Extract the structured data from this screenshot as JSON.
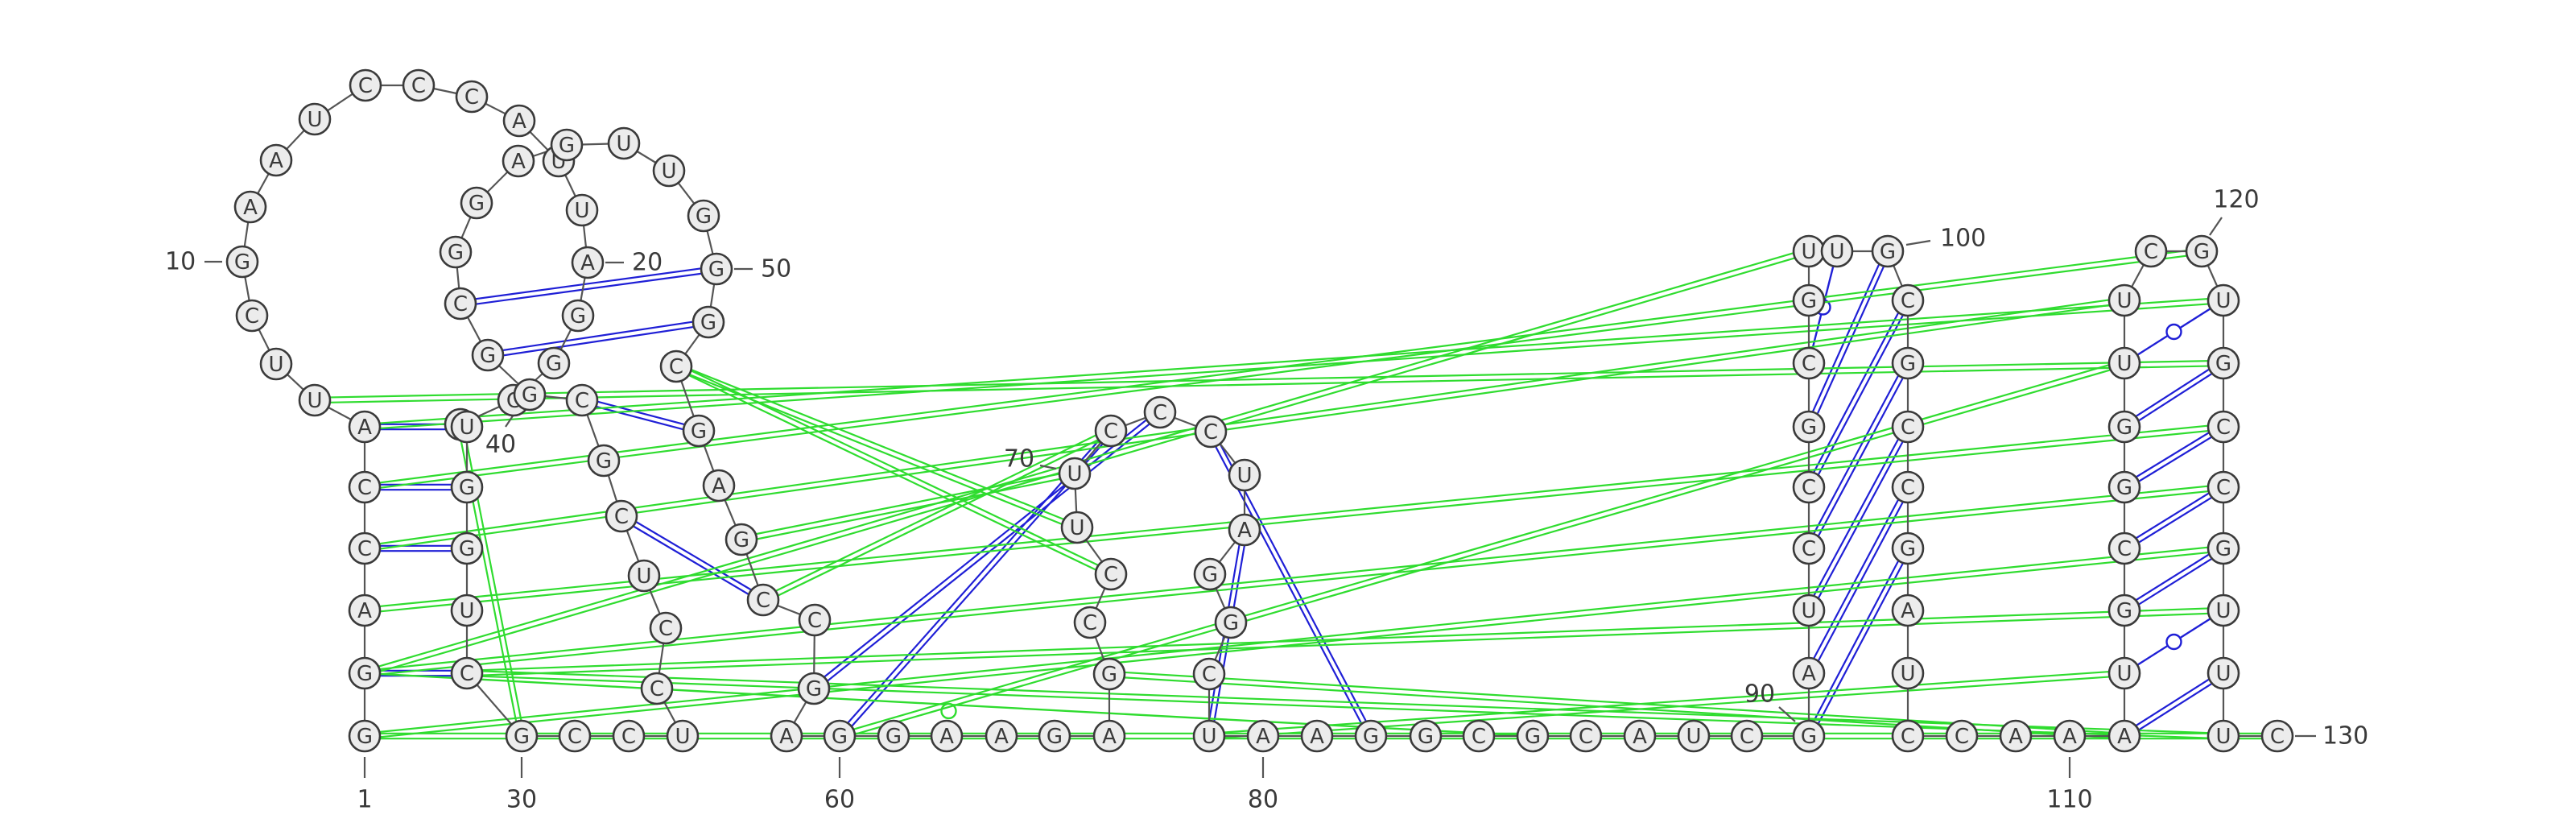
{
  "diagram": {
    "type": "rna-secondary-structure",
    "colors": {
      "background": "#ffffff",
      "backbone": "#555555",
      "nucleotide_fill": "#ececec",
      "nucleotide_stroke": "#3a3a3a",
      "canonical_pair": "#1f1fd6",
      "noncanonical_pair": "#2fdc2f"
    },
    "nucleotides": [
      {
        "n": 1,
        "b": "G"
      },
      {
        "n": 2,
        "b": "G"
      },
      {
        "n": 3,
        "b": "A"
      },
      {
        "n": 4,
        "b": "C"
      },
      {
        "n": 5,
        "b": "C"
      },
      {
        "n": 6,
        "b": "A"
      },
      {
        "n": 7,
        "b": "U"
      },
      {
        "n": 8,
        "b": "U"
      },
      {
        "n": 9,
        "b": "C"
      },
      {
        "n": 10,
        "b": "G"
      },
      {
        "n": 11,
        "b": "A"
      },
      {
        "n": 12,
        "b": "A"
      },
      {
        "n": 13,
        "b": "U"
      },
      {
        "n": 14,
        "b": "C"
      },
      {
        "n": 15,
        "b": "C"
      },
      {
        "n": 16,
        "b": "C"
      },
      {
        "n": 17,
        "b": "A"
      },
      {
        "n": 18,
        "b": "U"
      },
      {
        "n": 19,
        "b": "U"
      },
      {
        "n": 20,
        "b": "A"
      },
      {
        "n": 21,
        "b": "G"
      },
      {
        "n": 22,
        "b": "G"
      },
      {
        "n": 23,
        "b": "C"
      },
      {
        "n": 24,
        "b": "G"
      },
      {
        "n": 25,
        "b": "U"
      },
      {
        "n": 26,
        "b": "G"
      },
      {
        "n": 27,
        "b": "G"
      },
      {
        "n": 28,
        "b": "U"
      },
      {
        "n": 29,
        "b": "C"
      },
      {
        "n": 30,
        "b": "G"
      },
      {
        "n": 31,
        "b": "C"
      },
      {
        "n": 32,
        "b": "C"
      },
      {
        "n": 33,
        "b": "U"
      },
      {
        "n": 34,
        "b": "C"
      },
      {
        "n": 35,
        "b": "C"
      },
      {
        "n": 36,
        "b": "U"
      },
      {
        "n": 37,
        "b": "C"
      },
      {
        "n": 38,
        "b": "G"
      },
      {
        "n": 39,
        "b": "C"
      },
      {
        "n": 40,
        "b": "G"
      },
      {
        "n": 41,
        "b": "G"
      },
      {
        "n": 42,
        "b": "C"
      },
      {
        "n": 43,
        "b": "G"
      },
      {
        "n": 44,
        "b": "G"
      },
      {
        "n": 45,
        "b": "A"
      },
      {
        "n": 46,
        "b": "G"
      },
      {
        "n": 47,
        "b": "U"
      },
      {
        "n": 48,
        "b": "U"
      },
      {
        "n": 49,
        "b": "G"
      },
      {
        "n": 50,
        "b": "G"
      },
      {
        "n": 51,
        "b": "G"
      },
      {
        "n": 52,
        "b": "C"
      },
      {
        "n": 53,
        "b": "G"
      },
      {
        "n": 54,
        "b": "A"
      },
      {
        "n": 55,
        "b": "G"
      },
      {
        "n": 56,
        "b": "C"
      },
      {
        "n": 57,
        "b": "C"
      },
      {
        "n": 58,
        "b": "G"
      },
      {
        "n": 59,
        "b": "A"
      },
      {
        "n": 60,
        "b": "G"
      },
      {
        "n": 61,
        "b": "G"
      },
      {
        "n": 62,
        "b": "A"
      },
      {
        "n": 63,
        "b": "A"
      },
      {
        "n": 64,
        "b": "G"
      },
      {
        "n": 65,
        "b": "A"
      },
      {
        "n": 66,
        "b": "G"
      },
      {
        "n": 67,
        "b": "C"
      },
      {
        "n": 68,
        "b": "C"
      },
      {
        "n": 69,
        "b": "U"
      },
      {
        "n": 70,
        "b": "U"
      },
      {
        "n": 71,
        "b": "C"
      },
      {
        "n": 72,
        "b": "C"
      },
      {
        "n": 73,
        "b": "C"
      },
      {
        "n": 74,
        "b": "U"
      },
      {
        "n": 75,
        "b": "A"
      },
      {
        "n": 76,
        "b": "G"
      },
      {
        "n": 77,
        "b": "G"
      },
      {
        "n": 78,
        "b": "C"
      },
      {
        "n": 79,
        "b": "U"
      },
      {
        "n": 80,
        "b": "A"
      },
      {
        "n": 81,
        "b": "A"
      },
      {
        "n": 82,
        "b": "G"
      },
      {
        "n": 83,
        "b": "G"
      },
      {
        "n": 84,
        "b": "C"
      },
      {
        "n": 85,
        "b": "G"
      },
      {
        "n": 86,
        "b": "C"
      },
      {
        "n": 87,
        "b": "A"
      },
      {
        "n": 88,
        "b": "U"
      },
      {
        "n": 89,
        "b": "C"
      },
      {
        "n": 90,
        "b": "G"
      },
      {
        "n": 91,
        "b": "A"
      },
      {
        "n": 92,
        "b": "U"
      },
      {
        "n": 93,
        "b": "C"
      },
      {
        "n": 94,
        "b": "C"
      },
      {
        "n": 95,
        "b": "G"
      },
      {
        "n": 96,
        "b": "C"
      },
      {
        "n": 97,
        "b": "G"
      },
      {
        "n": 98,
        "b": "U"
      },
      {
        "n": 99,
        "b": "U"
      },
      {
        "n": 100,
        "b": "G"
      },
      {
        "n": 101,
        "b": "C"
      },
      {
        "n": 102,
        "b": "G"
      },
      {
        "n": 103,
        "b": "C"
      },
      {
        "n": 104,
        "b": "C"
      },
      {
        "n": 105,
        "b": "G"
      },
      {
        "n": 106,
        "b": "A"
      },
      {
        "n": 107,
        "b": "U"
      },
      {
        "n": 108,
        "b": "C"
      },
      {
        "n": 109,
        "b": "C"
      },
      {
        "n": 110,
        "b": "A"
      },
      {
        "n": 111,
        "b": "A"
      },
      {
        "n": 112,
        "b": "A"
      },
      {
        "n": 113,
        "b": "U"
      },
      {
        "n": 114,
        "b": "G"
      },
      {
        "n": 115,
        "b": "C"
      },
      {
        "n": 116,
        "b": "G"
      },
      {
        "n": 117,
        "b": "G"
      },
      {
        "n": 118,
        "b": "U"
      },
      {
        "n": 119,
        "b": "U"
      },
      {
        "n": 120,
        "b": "C"
      },
      {
        "n": 121,
        "b": "G"
      },
      {
        "n": 122,
        "b": "U"
      },
      {
        "n": 123,
        "b": "G"
      },
      {
        "n": 124,
        "b": "C"
      },
      {
        "n": 125,
        "b": "C"
      },
      {
        "n": 126,
        "b": "G"
      },
      {
        "n": 127,
        "b": "U"
      },
      {
        "n": 128,
        "b": "U"
      },
      {
        "n": 129,
        "b": "U"
      },
      {
        "n": 130,
        "b": "C"
      }
    ],
    "number_labels": [
      "1",
      "10",
      "20",
      "30",
      "40",
      "50",
      "60",
      "70",
      "80",
      "90",
      "100",
      "110",
      "120",
      "130"
    ],
    "pairs": [
      {
        "i": 2,
        "j": 29,
        "type": "canonical"
      },
      {
        "i": 4,
        "j": 27,
        "type": "canonical"
      },
      {
        "i": 5,
        "j": 26,
        "type": "canonical"
      },
      {
        "i": 6,
        "j": 25,
        "type": "canonical"
      },
      {
        "i": 37,
        "j": 56,
        "type": "canonical"
      },
      {
        "i": 39,
        "j": 53,
        "type": "canonical"
      },
      {
        "i": 41,
        "j": 51,
        "type": "canonical"
      },
      {
        "i": 42,
        "j": 50,
        "type": "canonical"
      },
      {
        "i": 60,
        "j": 71,
        "type": "canonical"
      },
      {
        "i": 58,
        "j": 72,
        "type": "canonical"
      },
      {
        "i": 75,
        "j": 79,
        "type": "canonical"
      },
      {
        "i": 73,
        "j": 82,
        "type": "canonical"
      },
      {
        "i": 90,
        "j": 105,
        "type": "canonical"
      },
      {
        "i": 91,
        "j": 104,
        "type": "canonical"
      },
      {
        "i": 92,
        "j": 103,
        "type": "canonical"
      },
      {
        "i": 93,
        "j": 102,
        "type": "canonical"
      },
      {
        "i": 94,
        "j": 101,
        "type": "canonical"
      },
      {
        "i": 95,
        "j": 100,
        "type": "canonical"
      },
      {
        "i": 96,
        "j": 99,
        "type": "wobble"
      },
      {
        "i": 112,
        "j": 128,
        "type": "canonical"
      },
      {
        "i": 113,
        "j": 127,
        "type": "wobble"
      },
      {
        "i": 114,
        "j": 126,
        "type": "canonical"
      },
      {
        "i": 115,
        "j": 125,
        "type": "canonical"
      },
      {
        "i": 116,
        "j": 124,
        "type": "canonical"
      },
      {
        "i": 117,
        "j": 123,
        "type": "canonical"
      },
      {
        "i": 118,
        "j": 122,
        "type": "wobble"
      },
      {
        "i": 2,
        "j": 98,
        "type": "noncanonical"
      },
      {
        "i": 4,
        "j": 119,
        "type": "noncanonical"
      },
      {
        "i": 5,
        "j": 121,
        "type": "noncanonical"
      },
      {
        "i": 6,
        "j": 122,
        "type": "noncanonical"
      },
      {
        "i": 7,
        "j": 123,
        "type": "noncanonical"
      },
      {
        "i": 3,
        "j": 124,
        "type": "noncanonical"
      },
      {
        "i": 2,
        "j": 125,
        "type": "noncanonical"
      },
      {
        "i": 1,
        "j": 126,
        "type": "noncanonical"
      },
      {
        "i": 1,
        "j": 130,
        "type": "noncanonical"
      },
      {
        "i": 29,
        "j": 127,
        "type": "noncanonical"
      },
      {
        "i": 29,
        "j": 129,
        "type": "noncanonical"
      },
      {
        "i": 24,
        "j": 30,
        "type": "noncanonical"
      },
      {
        "i": 52,
        "j": 69,
        "type": "noncanonical"
      },
      {
        "i": 52,
        "j": 68,
        "type": "noncanonical"
      },
      {
        "i": 55,
        "j": 70,
        "type": "noncanonical"
      },
      {
        "i": 56,
        "j": 71,
        "type": "noncanonical"
      },
      {
        "i": 2,
        "j": 85,
        "type": "noncanonical-marked"
      },
      {
        "i": 60,
        "j": 118,
        "type": "noncanonical"
      },
      {
        "i": 66,
        "j": 112,
        "type": "noncanonical"
      },
      {
        "i": 79,
        "j": 113,
        "type": "noncanonical"
      }
    ]
  }
}
